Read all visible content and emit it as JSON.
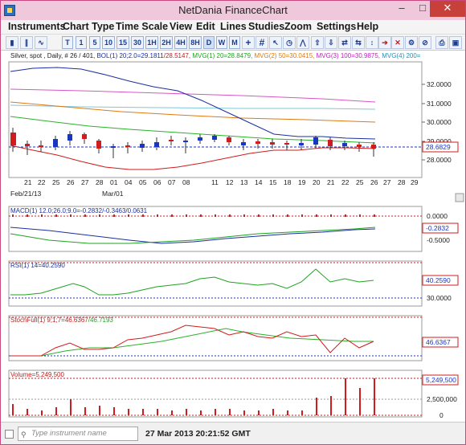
{
  "window": {
    "title": "NetDania FinanceChart"
  },
  "menu": [
    "Instruments",
    "Chart Type",
    "Time Scale",
    "View",
    "Edit",
    "Lines",
    "Studies",
    "Zoom",
    "Settings",
    "Help"
  ],
  "toolbar": {
    "timeframes": [
      "T",
      "1",
      "5",
      "10",
      "15",
      "30",
      "1H",
      "2H",
      "4H",
      "8H",
      "D",
      "W",
      "M"
    ]
  },
  "main_chart": {
    "header_parts": [
      {
        "text": "Silver, spot , Daily, # 26 / 401, ",
        "color": "#222222"
      },
      {
        "text": "BOL(1) 20;2.0=29.1811",
        "color": "#1c2fa0"
      },
      {
        "text": "/28.5147, ",
        "color": "#c31c1c"
      },
      {
        "text": "MVG(1) 20=28.8479, ",
        "color": "#1fa31f"
      },
      {
        "text": "MVG(2) 50=30.0415, ",
        "color": "#e07a10"
      },
      {
        "text": "MVG(3) 100=30.9875, ",
        "color": "#c21fc2"
      },
      {
        "text": "MVG(4) 200=",
        "color": "#2a8fb2"
      }
    ],
    "price_ticks": [
      "32.0000",
      "31.0000",
      "30.0000",
      "29.0000",
      "28.0000"
    ],
    "last_price": "28.6829",
    "date_labels": [
      "21",
      "22",
      "25",
      "26",
      "27",
      "28",
      "01",
      "04",
      "05",
      "06",
      "07",
      "08",
      "11",
      "12",
      "13",
      "14",
      "15",
      "18",
      "19",
      "20",
      "21",
      "22",
      "25",
      "26",
      "27",
      "28",
      "29"
    ],
    "month_labels": [
      "Feb/21/13",
      "Mar/01"
    ]
  },
  "macd": {
    "header": "MACD(1) 12.0;26.0;9.0=-0.2832/-0.3463/0.0631",
    "ticks": [
      "0.0000",
      "-0.5000"
    ],
    "last_value": "-0.2832"
  },
  "rsi": {
    "header": "RSI(1) 14=40.2590",
    "ticks": [
      "30.0000"
    ],
    "last_value": "40.2590"
  },
  "stoch": {
    "header_parts": [
      {
        "text": "StochFull(1) 9;1;7=46.6367",
        "color": "#c31c1c"
      },
      {
        "text": "/46.7193",
        "color": "#1fa31f"
      }
    ],
    "last_value": "46.6367"
  },
  "volume": {
    "header": "Volume=5,249,500",
    "ticks": [
      "2,500,000",
      "0"
    ],
    "last_value": "5,249,500"
  },
  "status": {
    "instrument_placeholder": "Type instrument name",
    "datetime": "27 Mar 2013 20:21:52 GMT"
  },
  "colors": {
    "bull_candle": "#1836c4",
    "bear_candle": "#d01c1c",
    "bol_upper": "#1c2fa0",
    "bol_lower": "#d01c1c",
    "mvg20": "#1fa31f",
    "mvg50": "#e07a10",
    "mvg100": "#c21fc2",
    "mvg200": "#2a8fb2"
  }
}
